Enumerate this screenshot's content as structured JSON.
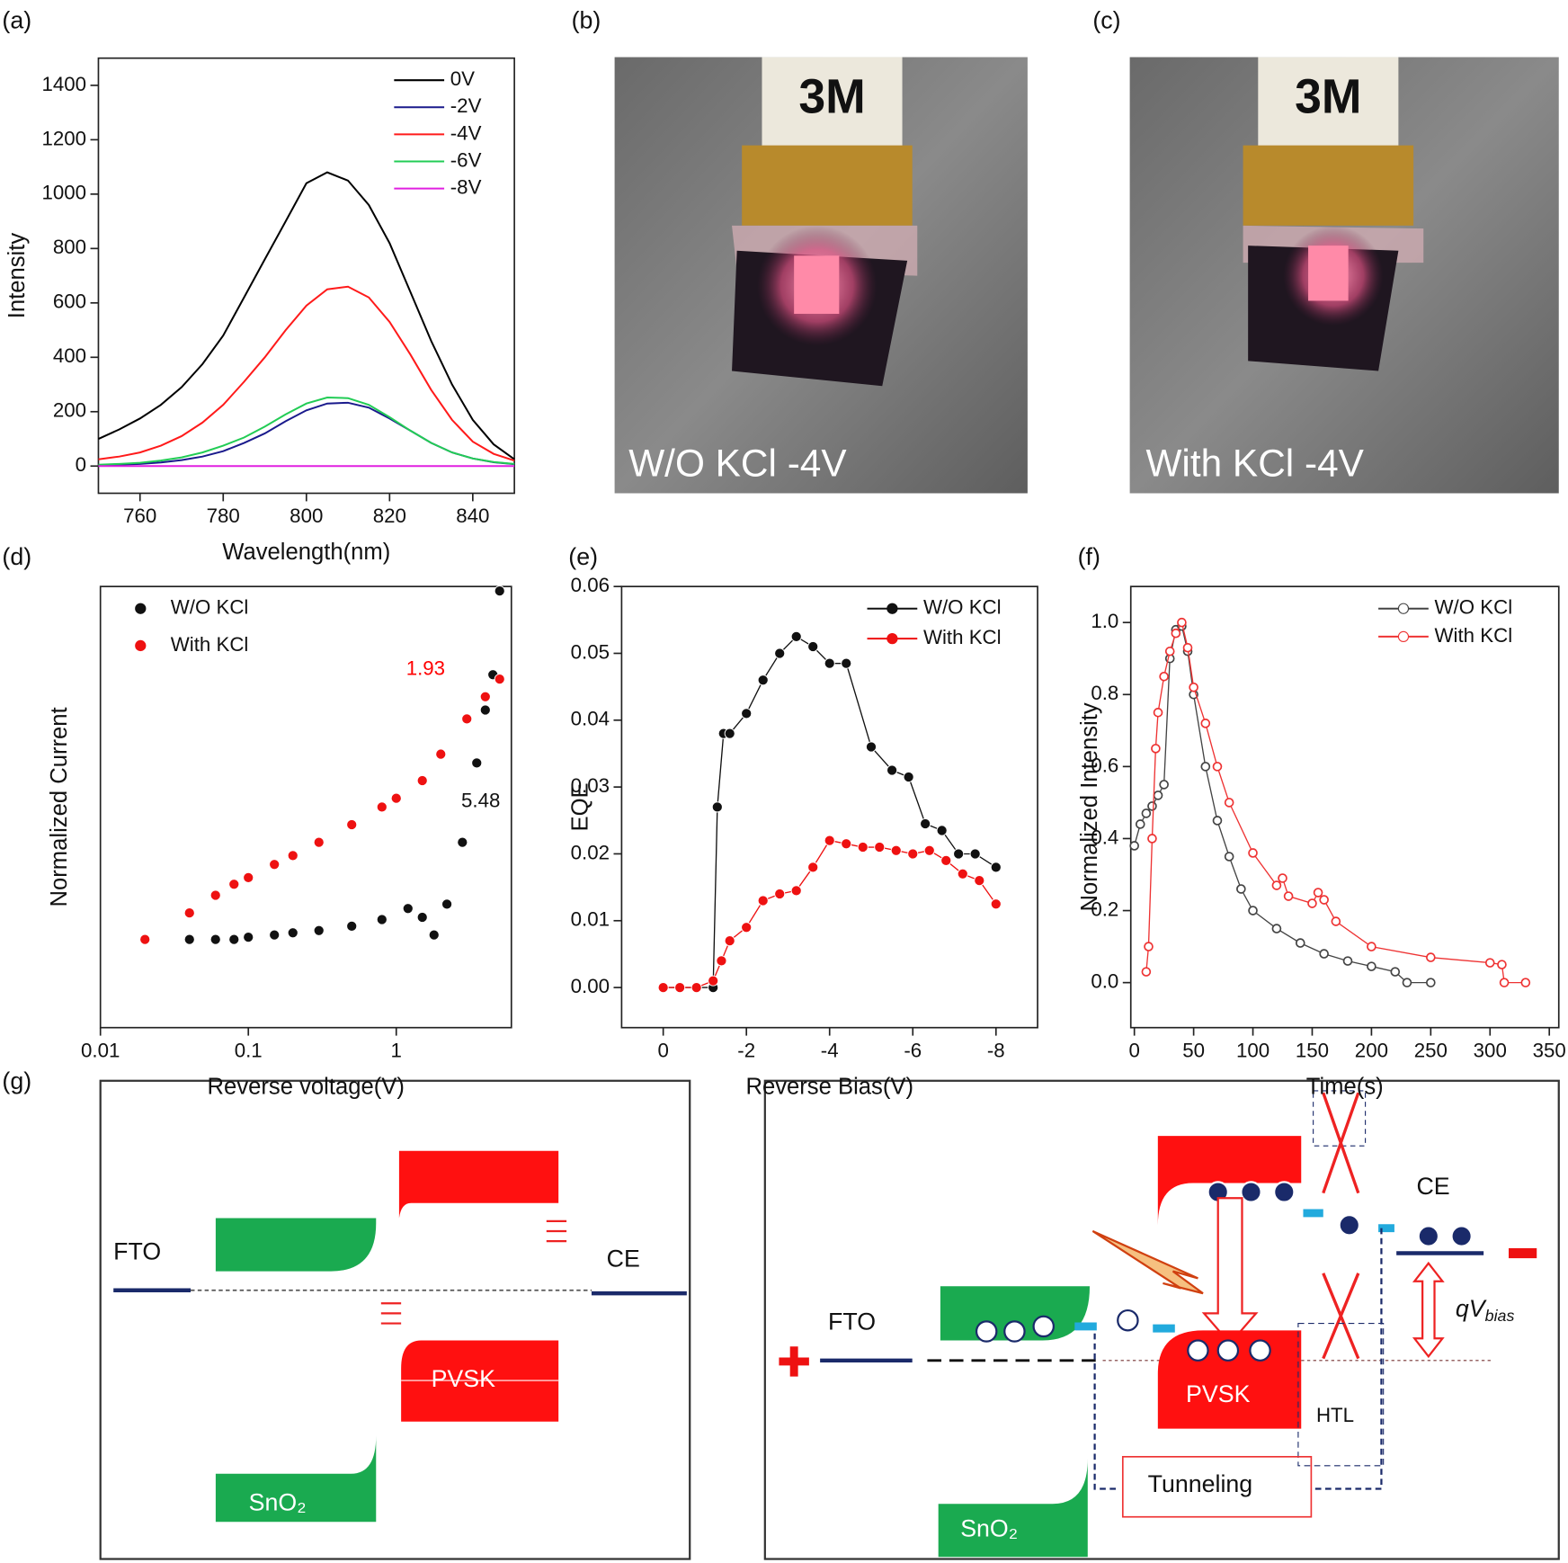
{
  "chart_data": [
    {
      "type": "line",
      "label": "(a)",
      "xlabel": "Wavelength(nm)",
      "ylabel": "Intensity",
      "xlim": [
        750,
        850
      ],
      "ylim": [
        -100,
        1500
      ],
      "xticks": [
        760,
        780,
        800,
        820,
        840
      ],
      "yticks": [
        0,
        200,
        400,
        600,
        800,
        1000,
        1200,
        1400
      ],
      "legend": "upper right",
      "x": [
        750,
        755,
        760,
        765,
        770,
        775,
        780,
        785,
        790,
        795,
        800,
        805,
        810,
        815,
        820,
        825,
        830,
        835,
        840,
        845,
        850
      ],
      "series": [
        {
          "name": "0V",
          "color": "#000000",
          "values": [
            100,
            135,
            175,
            225,
            290,
            375,
            480,
            620,
            760,
            900,
            1040,
            1080,
            1050,
            960,
            820,
            640,
            460,
            300,
            170,
            80,
            25
          ]
        },
        {
          "name": "-2V",
          "color": "#1a1a8c",
          "values": [
            3,
            5,
            8,
            13,
            22,
            35,
            55,
            85,
            120,
            165,
            205,
            230,
            233,
            215,
            175,
            130,
            85,
            50,
            28,
            14,
            7
          ]
        },
        {
          "name": "-4V",
          "color": "#ff1a1a",
          "values": [
            25,
            35,
            50,
            75,
            110,
            160,
            225,
            310,
            400,
            500,
            590,
            650,
            660,
            620,
            530,
            410,
            280,
            170,
            90,
            45,
            20
          ]
        },
        {
          "name": "-6V",
          "color": "#22cc55",
          "values": [
            5,
            8,
            12,
            20,
            32,
            50,
            75,
            105,
            145,
            190,
            230,
            252,
            250,
            225,
            180,
            130,
            85,
            50,
            28,
            15,
            8
          ]
        },
        {
          "name": "-8V",
          "color": "#e020e0",
          "values": [
            0,
            0,
            0,
            0,
            0,
            0,
            0,
            0,
            0,
            0,
            0,
            0,
            0,
            0,
            0,
            0,
            0,
            0,
            0,
            0,
            0
          ]
        }
      ]
    },
    {
      "type": "scatter",
      "label": "(d)",
      "xlabel": "Reverse voltage(V)",
      "ylabel": "Normalized Current",
      "xscale": "log",
      "xlim": [
        0.01,
        6
      ],
      "ylim": [
        0,
        1
      ],
      "xticks": [
        0.01,
        0.1,
        1
      ],
      "legend": "upper left",
      "series": [
        {
          "name": "W/O KCl",
          "color": "#111111",
          "x": [
            0.04,
            0.06,
            0.08,
            0.1,
            0.15,
            0.2,
            0.3,
            0.5,
            0.8,
            1.2,
            1.5,
            1.8,
            2.2,
            2.8,
            3.5,
            4,
            4.5,
            5
          ],
          "values": [
            0.2,
            0.2,
            0.2,
            0.205,
            0.21,
            0.215,
            0.22,
            0.23,
            0.245,
            0.27,
            0.25,
            0.21,
            0.28,
            0.42,
            0.6,
            0.72,
            0.8,
            0.99
          ]
        },
        {
          "name": "With KCl",
          "color": "#ee1111",
          "x": [
            0.02,
            0.04,
            0.06,
            0.08,
            0.1,
            0.15,
            0.2,
            0.3,
            0.5,
            0.8,
            1,
            1.5,
            2,
            3,
            4,
            5
          ],
          "values": [
            0.2,
            0.26,
            0.3,
            0.325,
            0.34,
            0.37,
            0.39,
            0.42,
            0.46,
            0.5,
            0.52,
            0.56,
            0.62,
            0.7,
            0.75,
            0.79
          ]
        }
      ],
      "annotations": [
        {
          "text": "1.93",
          "color": "#ff0000"
        },
        {
          "text": "5.48",
          "color": "#111111"
        }
      ]
    },
    {
      "type": "line",
      "markers": "filled",
      "label": "(e)",
      "xlabel": "Reverse Bias(V)",
      "ylabel": "EQE",
      "xlim": [
        1,
        -9
      ],
      "ylim": [
        -0.006,
        0.06
      ],
      "xticks": [
        0,
        -2,
        -4,
        -6,
        -8
      ],
      "yticks": [
        {
          "value": 0,
          "label": "0.00"
        },
        0.01,
        0.02,
        0.03,
        0.04,
        0.05,
        0.06
      ],
      "legend": "upper right",
      "series": [
        {
          "name": "W/O KCl",
          "color": "#111111",
          "x": [
            0,
            -0.4,
            -0.8,
            -1.2,
            -1.3,
            -1.45,
            -1.6,
            -2,
            -2.4,
            -2.8,
            -3.2,
            -3.6,
            -4,
            -4.4,
            -5,
            -5.5,
            -5.9,
            -6.3,
            -6.7,
            -7.1,
            -7.5,
            -8
          ],
          "values": [
            0,
            0,
            0,
            0,
            0.027,
            0.038,
            0.038,
            0.041,
            0.046,
            0.05,
            0.0525,
            0.051,
            0.0485,
            0.0485,
            0.036,
            0.0325,
            0.0315,
            0.0245,
            0.0235,
            0.02,
            0.02,
            0.018
          ]
        },
        {
          "name": "With KCl",
          "color": "#ee1111",
          "x": [
            0,
            -0.4,
            -0.8,
            -1.2,
            -1.4,
            -1.6,
            -2,
            -2.4,
            -2.8,
            -3.2,
            -3.6,
            -4,
            -4.4,
            -4.8,
            -5.2,
            -5.6,
            -6,
            -6.4,
            -6.8,
            -7.2,
            -7.6,
            -8
          ],
          "values": [
            0,
            0,
            0,
            0.001,
            0.004,
            0.007,
            0.009,
            0.013,
            0.014,
            0.0145,
            0.018,
            0.022,
            0.0215,
            0.021,
            0.021,
            0.0205,
            0.02,
            0.0205,
            0.019,
            0.017,
            0.016,
            0.0125
          ]
        }
      ]
    },
    {
      "type": "line",
      "markers": "open",
      "label": "(f)",
      "xlabel": "Time(s)",
      "ylabel": "Normalized Intensity",
      "xlim": [
        -3,
        358
      ],
      "ylim": [
        -0.125,
        1.1
      ],
      "xticks": [
        0,
        50,
        100,
        150,
        200,
        250,
        300,
        350
      ],
      "yticks": [
        {
          "value": 0,
          "label": "0.0"
        },
        0.2,
        0.4,
        0.6,
        0.8,
        {
          "value": 1,
          "label": "1.0"
        }
      ],
      "legend": "upper right",
      "series": [
        {
          "name": "W/O KCl",
          "color": "#444444",
          "x": [
            0,
            5,
            10,
            15,
            20,
            25,
            30,
            35,
            40,
            45,
            50,
            60,
            70,
            80,
            90,
            100,
            120,
            140,
            160,
            180,
            200,
            220,
            230,
            250
          ],
          "values": [
            0.38,
            0.44,
            0.47,
            0.49,
            0.52,
            0.55,
            0.9,
            0.98,
            0.99,
            0.92,
            0.8,
            0.6,
            0.45,
            0.35,
            0.26,
            0.2,
            0.15,
            0.11,
            0.08,
            0.06,
            0.045,
            0.03,
            0,
            0
          ]
        },
        {
          "name": "With KCl",
          "color": "#ee3333",
          "x": [
            10,
            12,
            15,
            18,
            20,
            25,
            30,
            35,
            40,
            45,
            50,
            60,
            70,
            80,
            100,
            120,
            125,
            130,
            150,
            155,
            160,
            170,
            200,
            250,
            300,
            310,
            312,
            330
          ],
          "values": [
            0.03,
            0.1,
            0.4,
            0.65,
            0.75,
            0.85,
            0.92,
            0.97,
            1.0,
            0.93,
            0.82,
            0.72,
            0.6,
            0.5,
            0.36,
            0.27,
            0.29,
            0.24,
            0.22,
            0.25,
            0.23,
            0.17,
            0.1,
            0.07,
            0.055,
            0.05,
            0,
            0
          ]
        }
      ]
    }
  ],
  "photos": [
    {
      "label": "(b)",
      "logo": "3M",
      "caption": "W/O KCl -4V"
    },
    {
      "label": "(c)",
      "logo": "3M",
      "caption": "With KCl -4V"
    }
  ],
  "diagram": {
    "label": "(g)",
    "left": {
      "fto": "FTO",
      "ce": "CE",
      "pvsk": "PVSK",
      "sno2": "SnO₂"
    },
    "right": {
      "fto": "FTO",
      "ce": "CE",
      "pvsk": "PVSK",
      "sno2": "SnO₂",
      "htl": "HTL",
      "tunneling": "Tunneling",
      "qv": "qV",
      "qv_sub": "bias"
    }
  }
}
